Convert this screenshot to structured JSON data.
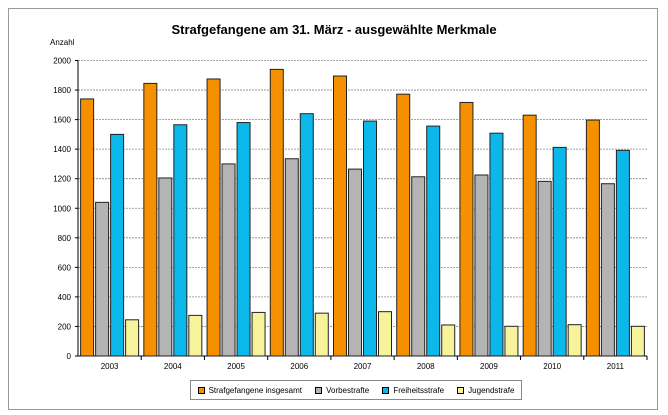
{
  "chart_data": {
    "type": "bar",
    "title": "Strafgefangene am 31. März - ausgewählte Merkmale",
    "ylabel": "Anzahl",
    "xlabel": "",
    "ylim": [
      0,
      2000
    ],
    "yticks": [
      0,
      200,
      400,
      600,
      800,
      1000,
      1200,
      1400,
      1600,
      1800,
      2000
    ],
    "grid": true,
    "legend_position": "bottom",
    "categories": [
      "2003",
      "2004",
      "2005",
      "2006",
      "2007",
      "2008",
      "2009",
      "2010",
      "2011"
    ],
    "series": [
      {
        "name": "Strafgefangene insgesamt",
        "color": "#f59100",
        "values": [
          1740,
          1845,
          1875,
          1940,
          1895,
          1772,
          1716,
          1630,
          1597
        ]
      },
      {
        "name": "Vorbestrafte",
        "color": "#b4b4b4",
        "values": [
          1040,
          1205,
          1300,
          1335,
          1265,
          1213,
          1225,
          1182,
          1166
        ]
      },
      {
        "name": "Freiheitsstrafe",
        "color": "#0cb8ea",
        "values": [
          1500,
          1565,
          1580,
          1640,
          1590,
          1556,
          1508,
          1412,
          1392
        ]
      },
      {
        "name": "Jugendstrafe",
        "color": "#f6f39a",
        "values": [
          245,
          275,
          295,
          290,
          300,
          210,
          201,
          212,
          201
        ]
      }
    ]
  }
}
